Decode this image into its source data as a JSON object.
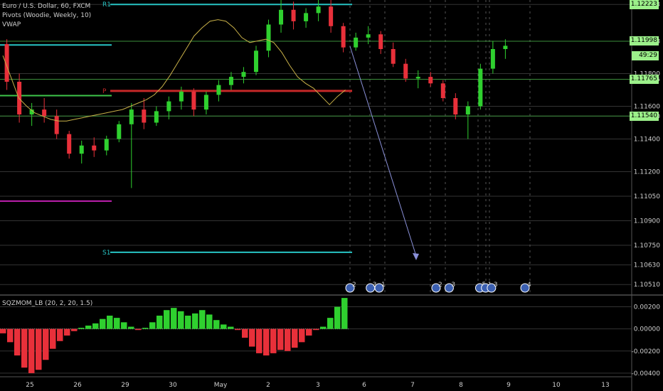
{
  "header": {
    "symbol": "Euro / U.S. Dollar, 60, FXCM",
    "pivots": "Pivots (Woodie, Weekly, 10)",
    "vwap": "VWAP"
  },
  "indicator": {
    "title": "SQZMOM_LB (20, 2, 20, 1.5)"
  },
  "pivot_labels": {
    "r1": "R1",
    "p": "P",
    "s1": "S1"
  },
  "price_labels": [
    {
      "text": "1.12223",
      "value": 1.12223
    },
    {
      "text": "1.11998",
      "value": 1.11998
    },
    {
      "text": "49:29",
      "value": 1.1191
    },
    {
      "text": "1.11765",
      "value": 1.11765
    },
    {
      "text": "1.11540",
      "value": 1.1154
    }
  ],
  "colors": {
    "up": "#2fd02f",
    "down": "#e8303a",
    "pivot_r1": "#27c4c4",
    "pivot_p": "#c62828",
    "pivot_s1": "#27c4c4",
    "pivot_green": "#3ec64a",
    "pivot_magenta": "#c020b0",
    "arrow": "#8a90d8",
    "label_bg": "#9cf08a"
  },
  "event_markers": [
    {
      "x": 21.8,
      "label": "2"
    },
    {
      "x": 23.2,
      "label": "3"
    },
    {
      "x": 23.8,
      "label": "1"
    },
    {
      "x": 27.7,
      "label": "2"
    },
    {
      "x": 28.6,
      "label": "3"
    },
    {
      "x": 30.7,
      "label": "5"
    },
    {
      "x": 31.1,
      "label": "1"
    },
    {
      "x": 31.5,
      "label": "3"
    },
    {
      "x": 33.8,
      "label": "4"
    }
  ],
  "chart_data": [
    {
      "type": "candlestick",
      "title": "Euro / U.S. Dollar, 60, FXCM",
      "x_tick_labels": [
        "25",
        "26",
        "29",
        "30",
        "May",
        "2",
        "3",
        "6",
        "7",
        "8",
        "9",
        "10",
        "13"
      ],
      "y_tick_labels": [
        "1.12223",
        "1.11998",
        "1.11800",
        "1.11765",
        "1.11600",
        "1.11540",
        "1.11400",
        "1.11200",
        "1.11050",
        "1.10900",
        "1.10750",
        "1.10630",
        "1.10510"
      ],
      "ylim": [
        1.1045,
        1.1225
      ],
      "pivots": {
        "R1": 1.12223,
        "P": 1.11694,
        "S1": 1.10707,
        "green": 1.11665,
        "cyan": 1.11975,
        "magenta": 1.1102
      },
      "series": [
        {
          "name": "VWAP",
          "values": [
            1.1191,
            1.1178,
            1.1165,
            1.116,
            1.1156,
            1.1154,
            1.1152,
            1.1151,
            1.1151,
            1.1152,
            1.1153,
            1.1154,
            1.1155,
            1.1156,
            1.1157,
            1.1158,
            1.116,
            1.1162,
            1.1164,
            1.1167,
            1.1172,
            1.1179,
            1.1187,
            1.1195,
            1.1203,
            1.1208,
            1.1212,
            1.1213,
            1.1212,
            1.1208,
            1.1202,
            1.1199,
            1.12,
            1.1201,
            1.1199,
            1.1193,
            1.1185,
            1.1178,
            1.1174,
            1.1171,
            1.1166,
            1.1161,
            1.1166,
            1.117
          ]
        }
      ],
      "candles": [
        [
          1.1198,
          1.1201,
          1.117,
          1.1175
        ],
        [
          1.1175,
          1.118,
          1.115,
          1.1155
        ],
        [
          1.1155,
          1.1162,
          1.1148,
          1.1158
        ],
        [
          1.1158,
          1.1165,
          1.115,
          1.1154
        ],
        [
          1.1154,
          1.1158,
          1.114,
          1.1143
        ],
        [
          1.1143,
          1.1145,
          1.1128,
          1.1131
        ],
        [
          1.1131,
          1.1139,
          1.1125,
          1.1136
        ],
        [
          1.1136,
          1.1141,
          1.1129,
          1.1133
        ],
        [
          1.1133,
          1.1142,
          1.113,
          1.114
        ],
        [
          1.114,
          1.1151,
          1.1138,
          1.1149
        ],
        [
          1.1149,
          1.1162,
          1.111,
          1.1158
        ],
        [
          1.1158,
          1.1165,
          1.1146,
          1.115
        ],
        [
          1.115,
          1.116,
          1.1148,
          1.1157
        ],
        [
          1.1157,
          1.1166,
          1.1152,
          1.1163
        ],
        [
          1.1163,
          1.1172,
          1.1158,
          1.1169
        ],
        [
          1.1169,
          1.1171,
          1.1154,
          1.1158
        ],
        [
          1.1158,
          1.1169,
          1.1155,
          1.1167
        ],
        [
          1.1167,
          1.1176,
          1.1163,
          1.1173
        ],
        [
          1.1173,
          1.1181,
          1.117,
          1.1178
        ],
        [
          1.1178,
          1.1184,
          1.1174,
          1.1181
        ],
        [
          1.1181,
          1.1197,
          1.1179,
          1.1194
        ],
        [
          1.1194,
          1.1213,
          1.119,
          1.121
        ],
        [
          1.121,
          1.1225,
          1.1205,
          1.1219
        ],
        [
          1.1219,
          1.1224,
          1.1207,
          1.1212
        ],
        [
          1.1212,
          1.122,
          1.1208,
          1.1217
        ],
        [
          1.1217,
          1.1225,
          1.1212,
          1.1221
        ],
        [
          1.1221,
          1.1225,
          1.1205,
          1.1209
        ],
        [
          1.1209,
          1.1211,
          1.1193,
          1.1196
        ],
        [
          1.1196,
          1.1205,
          1.1194,
          1.1202
        ],
        [
          1.1202,
          1.1209,
          1.1198,
          1.1204
        ],
        [
          1.1204,
          1.1206,
          1.1192,
          1.1195
        ],
        [
          1.1195,
          1.1199,
          1.1184,
          1.1186
        ],
        [
          1.1186,
          1.1189,
          1.1175,
          1.1177
        ],
        [
          1.1177,
          1.1182,
          1.1171,
          1.1178
        ],
        [
          1.1178,
          1.1181,
          1.1172,
          1.1174
        ],
        [
          1.1174,
          1.1176,
          1.1163,
          1.1165
        ],
        [
          1.1165,
          1.1168,
          1.1152,
          1.1155
        ],
        [
          1.1155,
          1.1163,
          1.114,
          1.116
        ],
        [
          1.116,
          1.1186,
          1.1158,
          1.1183
        ],
        [
          1.1183,
          1.12,
          1.118,
          1.1195
        ],
        [
          1.1195,
          1.1201,
          1.1189,
          1.1197
        ]
      ]
    },
    {
      "type": "bar",
      "title": "SQZMOM_LB (20, 2, 20, 1.5)",
      "y_tick_labels": [
        "0.00200",
        "0.00000",
        "-0.00200",
        "-0.00400"
      ],
      "ylim": [
        -0.0042,
        0.003
      ],
      "values": [
        -0.0004,
        -0.0012,
        -0.0024,
        -0.0035,
        -0.004,
        -0.0037,
        -0.0028,
        -0.0018,
        -0.0011,
        -0.0006,
        -0.0002,
        0.0001,
        0.0003,
        0.0005,
        0.0009,
        0.0012,
        0.001,
        0.0006,
        0.0002,
        -0.0001,
        0.0001,
        0.0006,
        0.0012,
        0.0017,
        0.0019,
        0.0016,
        0.0012,
        0.0014,
        0.0017,
        0.0013,
        0.0008,
        0.0004,
        0.0002,
        -0.0001,
        -0.0008,
        -0.0016,
        -0.0022,
        -0.0024,
        -0.0022,
        -0.0019,
        -0.002,
        -0.0017,
        -0.0012,
        -0.0006,
        -0.0001,
        0.0002,
        0.001,
        0.002,
        0.0028
      ]
    }
  ]
}
